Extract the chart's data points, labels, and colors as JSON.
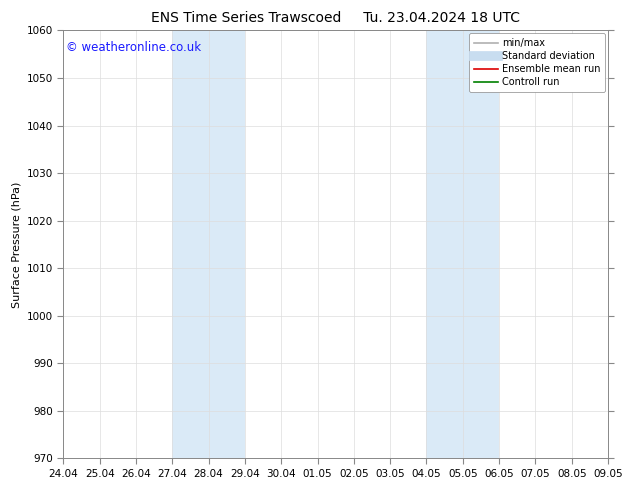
{
  "title_left": "ENS Time Series Trawscoed",
  "title_right": "Tu. 23.04.2024 18 UTC",
  "ylabel": "Surface Pressure (hPa)",
  "ylim": [
    970,
    1060
  ],
  "yticks": [
    970,
    980,
    990,
    1000,
    1010,
    1020,
    1030,
    1040,
    1050,
    1060
  ],
  "xtick_labels": [
    "24.04",
    "25.04",
    "26.04",
    "27.04",
    "28.04",
    "29.04",
    "30.04",
    "01.05",
    "02.05",
    "03.05",
    "04.05",
    "05.05",
    "06.05",
    "07.05",
    "08.05",
    "09.05"
  ],
  "xtick_positions": [
    0,
    1,
    2,
    3,
    4,
    5,
    6,
    7,
    8,
    9,
    10,
    11,
    12,
    13,
    14,
    15
  ],
  "shaded_bands": [
    {
      "x_start": 3,
      "x_end": 5
    },
    {
      "x_start": 10,
      "x_end": 12
    }
  ],
  "shaded_color": "#daeaf7",
  "watermark_text": "© weatheronline.co.uk",
  "watermark_color": "#1a1aff",
  "watermark_fontsize": 8.5,
  "legend_entries": [
    {
      "label": "min/max",
      "color": "#b0b0b0",
      "linewidth": 1.2
    },
    {
      "label": "Standard deviation",
      "color": "#c8ddf0",
      "linewidth": 7
    },
    {
      "label": "Ensemble mean run",
      "color": "#dd0000",
      "linewidth": 1.2
    },
    {
      "label": "Controll run",
      "color": "#008000",
      "linewidth": 1.2
    }
  ],
  "background_color": "#ffffff",
  "grid_color": "#dddddd",
  "spine_color": "#888888",
  "title_fontsize": 10,
  "axis_label_fontsize": 8,
  "tick_fontsize": 7.5,
  "legend_fontsize": 7
}
